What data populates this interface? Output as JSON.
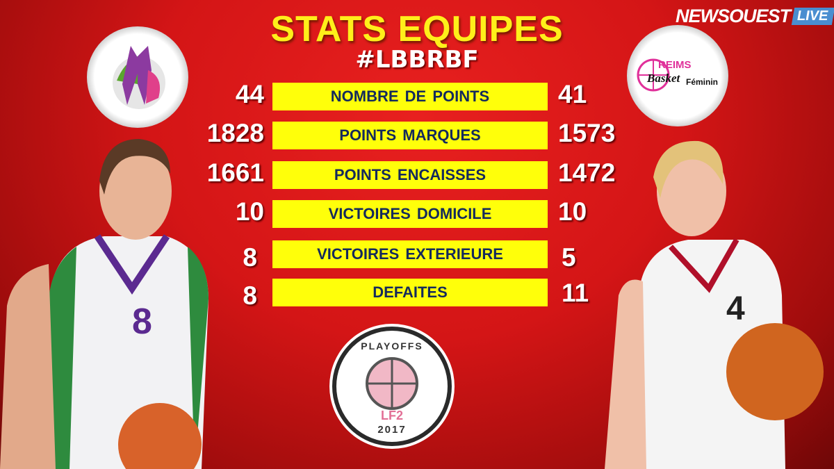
{
  "title": "STATS EQUIPES",
  "hashtag": "#LBBRBF",
  "brand": {
    "name": "NEWSOUEST",
    "badge": "LIVE"
  },
  "teams": {
    "right_logo_text": {
      "line1": "REIMS",
      "line2": "Basket",
      "line3": "Féminin"
    }
  },
  "stats": [
    {
      "label": "NOMBRE DE POINTS",
      "left": "44",
      "right": "41"
    },
    {
      "label": "POINTS MARQUES",
      "left": "1828",
      "right": "1573"
    },
    {
      "label": "POINTS ENCAISSES",
      "left": "1661",
      "right": "1472"
    },
    {
      "label": "VICTOIRES DOMICILE",
      "left": "10",
      "right": "10"
    },
    {
      "label": "VICTOIRES EXTERIEURE",
      "left": "8",
      "right": "5"
    },
    {
      "label": "DEFAITES",
      "left": "8",
      "right": "11"
    }
  ],
  "playoffs_logo": {
    "top": "PLAYOFFS",
    "mid": "LF2",
    "year": "2017"
  },
  "colors": {
    "label_bg": "#ffff0a",
    "label_text": "#142a5c",
    "title": "#ffef1a",
    "background": "#d41516"
  }
}
